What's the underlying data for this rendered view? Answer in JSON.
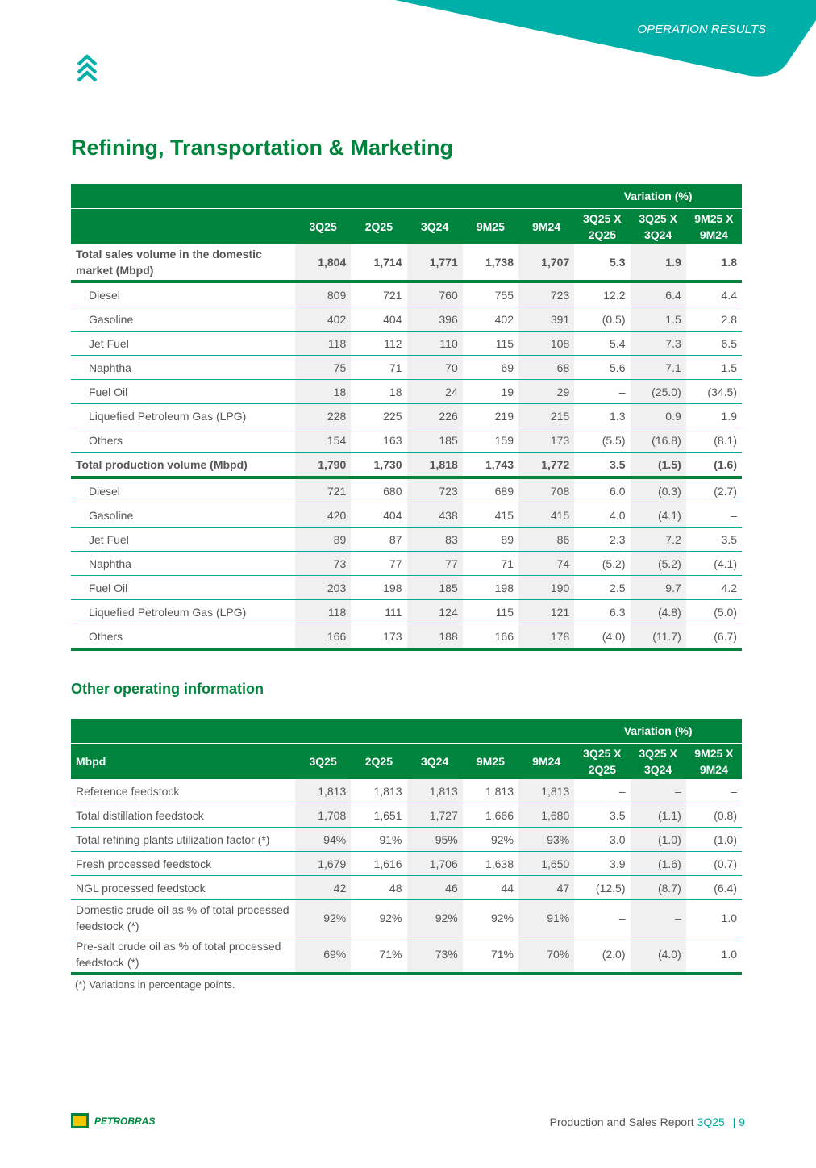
{
  "header": {
    "section": "OPERATION RESULTS"
  },
  "title": "Refining, Transportation & Marketing",
  "table1": {
    "variation_label": "Variation (%)",
    "columns": [
      "3Q25",
      "2Q25",
      "3Q24",
      "9M25",
      "9M24",
      "3Q25 X 2Q25",
      "3Q25 X 3Q24",
      "9M25 X 9M24"
    ],
    "groups": [
      {
        "total": [
          "Total sales volume in the domestic market (Mbpd)",
          "1,804",
          "1,714",
          "1,771",
          "1,738",
          "1,707",
          "5.3",
          "1.9",
          "1.8"
        ],
        "items": [
          [
            "Diesel",
            "809",
            "721",
            "760",
            "755",
            "723",
            "12.2",
            "6.4",
            "4.4"
          ],
          [
            "Gasoline",
            "402",
            "404",
            "396",
            "402",
            "391",
            "(0.5)",
            "1.5",
            "2.8"
          ],
          [
            "Jet Fuel",
            "118",
            "112",
            "110",
            "115",
            "108",
            "5.4",
            "7.3",
            "6.5"
          ],
          [
            "Naphtha",
            "75",
            "71",
            "70",
            "69",
            "68",
            "5.6",
            "7.1",
            "1.5"
          ],
          [
            "Fuel Oil",
            "18",
            "18",
            "24",
            "19",
            "29",
            "–",
            "(25.0)",
            "(34.5)"
          ],
          [
            "Liquefied Petroleum Gas (LPG)",
            "228",
            "225",
            "226",
            "219",
            "215",
            "1.3",
            "0.9",
            "1.9"
          ],
          [
            "Others",
            "154",
            "163",
            "185",
            "159",
            "173",
            "(5.5)",
            "(16.8)",
            "(8.1)"
          ]
        ]
      },
      {
        "total": [
          "Total production volume (Mbpd)",
          "1,790",
          "1,730",
          "1,818",
          "1,743",
          "1,772",
          "3.5",
          "(1.5)",
          "(1.6)"
        ],
        "items": [
          [
            "Diesel",
            "721",
            "680",
            "723",
            "689",
            "708",
            "6.0",
            "(0.3)",
            "(2.7)"
          ],
          [
            "Gasoline",
            "420",
            "404",
            "438",
            "415",
            "415",
            "4.0",
            "(4.1)",
            "–"
          ],
          [
            "Jet Fuel",
            "89",
            "87",
            "83",
            "89",
            "86",
            "2.3",
            "7.2",
            "3.5"
          ],
          [
            "Naphtha",
            "73",
            "77",
            "77",
            "71",
            "74",
            "(5.2)",
            "(5.2)",
            "(4.1)"
          ],
          [
            "Fuel Oil",
            "203",
            "198",
            "185",
            "198",
            "190",
            "2.5",
            "9.7",
            "4.2"
          ],
          [
            "Liquefied Petroleum Gas (LPG)",
            "118",
            "111",
            "124",
            "115",
            "121",
            "6.3",
            "(4.8)",
            "(5.0)"
          ],
          [
            "Others",
            "166",
            "173",
            "188",
            "166",
            "178",
            "(4.0)",
            "(11.7)",
            "(6.7)"
          ]
        ]
      }
    ]
  },
  "subtitle": "Other operating information",
  "table2": {
    "variation_label": "Variation (%)",
    "stub_header": "Mbpd",
    "columns": [
      "3Q25",
      "2Q25",
      "3Q24",
      "9M25",
      "9M24",
      "3Q25 X 2Q25",
      "3Q25 X 3Q24",
      "9M25 X 9M24"
    ],
    "rows": [
      [
        "Reference feedstock",
        "1,813",
        "1,813",
        "1,813",
        "1,813",
        "1,813",
        "–",
        "–",
        "–"
      ],
      [
        "Total distillation feedstock",
        "1,708",
        "1,651",
        "1,727",
        "1,666",
        "1,680",
        "3.5",
        "(1.1)",
        "(0.8)"
      ],
      [
        "Total refining plants utilization factor (*)",
        "94%",
        "91%",
        "95%",
        "92%",
        "93%",
        "3.0",
        "(1.0)",
        "(1.0)"
      ],
      [
        "Fresh processed feedstock",
        "1,679",
        "1,616",
        "1,706",
        "1,638",
        "1,650",
        "3.9",
        "(1.6)",
        "(0.7)"
      ],
      [
        "NGL processed feedstock",
        "42",
        "48",
        "46",
        "44",
        "47",
        "(12.5)",
        "(8.7)",
        "(6.4)"
      ],
      [
        "Domestic crude oil as % of total processed feedstock (*)",
        "92%",
        "92%",
        "92%",
        "92%",
        "91%",
        "–",
        "–",
        "1.0"
      ],
      [
        "Pre-salt crude oil as % of total processed feedstock (*)",
        "69%",
        "71%",
        "73%",
        "71%",
        "70%",
        "(2.0)",
        "(4.0)",
        "1.0"
      ]
    ]
  },
  "footnote": "(*) Variations in percentage points.",
  "footer": {
    "logo": "PETROBRAS",
    "report": "Production and Sales Report",
    "period": "3Q25",
    "page": "9"
  }
}
